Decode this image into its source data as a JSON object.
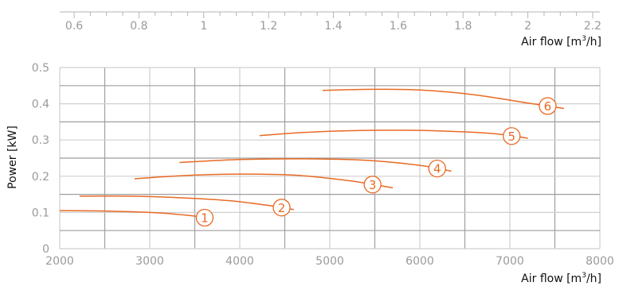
{
  "chart_data": {
    "type": "line",
    "title": "",
    "ylabel": "Power [kW]",
    "xlabel_prefix": "Air flow [m",
    "xlabel_suffix": "/h]",
    "xlabel_sup": "3",
    "xlim": [
      2000,
      8000
    ],
    "ylim": [
      0,
      0.5
    ],
    "x_ticks": [
      "2000",
      "3000",
      "4000",
      "5000",
      "6000",
      "7000",
      "8000"
    ],
    "y_ticks": [
      "0",
      "0.1",
      "0.2",
      "0.3",
      "0.4",
      "0.5"
    ],
    "secondary_x": {
      "xlim": [
        0.5556,
        2.2222
      ],
      "ticks": [
        "0.6",
        "0.8",
        "1",
        "1.2",
        "1.4",
        "1.6",
        "1.8",
        "2",
        "2.2"
      ]
    },
    "grid": true,
    "color": "#e86a24",
    "series": [
      {
        "label": "1",
        "x": [
          2000,
          2500,
          3000,
          3300,
          3500,
          3700
        ],
        "y": [
          0.105,
          0.104,
          0.1,
          0.095,
          0.09,
          0.082
        ]
      },
      {
        "label": "2",
        "x": [
          2220,
          2800,
          3400,
          3900,
          4300,
          4600
        ],
        "y": [
          0.145,
          0.145,
          0.14,
          0.132,
          0.12,
          0.108
        ]
      },
      {
        "label": "3",
        "x": [
          2830,
          3400,
          4000,
          4600,
          5200,
          5700
        ],
        "y": [
          0.193,
          0.202,
          0.206,
          0.203,
          0.188,
          0.168
        ]
      },
      {
        "label": "4",
        "x": [
          3330,
          4000,
          4700,
          5400,
          6000,
          6350
        ],
        "y": [
          0.238,
          0.246,
          0.248,
          0.244,
          0.23,
          0.214
        ]
      },
      {
        "label": "5",
        "x": [
          4220,
          4800,
          5600,
          6200,
          6800,
          7200
        ],
        "y": [
          0.312,
          0.322,
          0.327,
          0.325,
          0.318,
          0.305
        ]
      },
      {
        "label": "6",
        "x": [
          4920,
          5500,
          6000,
          6600,
          7200,
          7600
        ],
        "y": [
          0.437,
          0.44,
          0.438,
          0.425,
          0.402,
          0.387
        ]
      }
    ]
  }
}
